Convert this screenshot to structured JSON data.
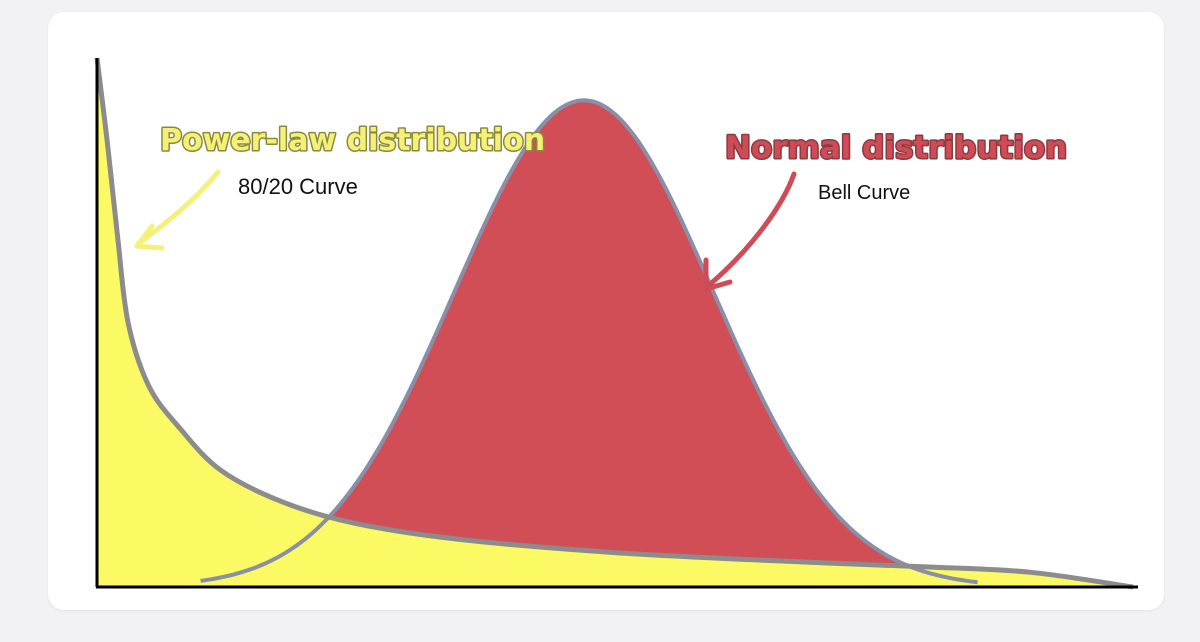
{
  "chart_data": {
    "type": "area",
    "title": "",
    "xlabel": "",
    "ylabel": "",
    "xlim": [
      0,
      1
    ],
    "ylim": [
      0,
      1
    ],
    "grid": false,
    "series": [
      {
        "name": "Power-law distribution",
        "subtitle": "80/20 Curve",
        "kind": "power-law",
        "x": [
          0,
          0.01,
          0.02,
          0.03,
          0.05,
          0.08,
          0.12,
          0.18,
          0.25,
          0.35,
          0.5,
          0.65,
          0.8,
          0.9,
          1.0
        ],
        "y": [
          1.0,
          0.84,
          0.66,
          0.5,
          0.38,
          0.3,
          0.22,
          0.16,
          0.12,
          0.09,
          0.065,
          0.05,
          0.038,
          0.028,
          0.0
        ],
        "fill": "#fbfa64",
        "label_color": "#f4f07a"
      },
      {
        "name": "Normal distribution",
        "subtitle": "Bell Curve",
        "kind": "normal",
        "mean": 0.47,
        "sd": 0.125,
        "peak": 0.92,
        "fill": "#d14e57",
        "label_color": "#cf4b56"
      }
    ],
    "line_color": "#8c8c8c",
    "annotations": [
      {
        "text": "Power-law distribution",
        "series": 0
      },
      {
        "text": "80/20 Curve",
        "series": 0
      },
      {
        "text": "Normal distribution",
        "series": 1
      },
      {
        "text": "Bell Curve",
        "series": 1
      }
    ]
  },
  "labels": {
    "power_title": "Power-law distribution",
    "power_subtitle": "80/20 Curve",
    "normal_title": "Normal distribution",
    "normal_subtitle": "Bell Curve"
  }
}
